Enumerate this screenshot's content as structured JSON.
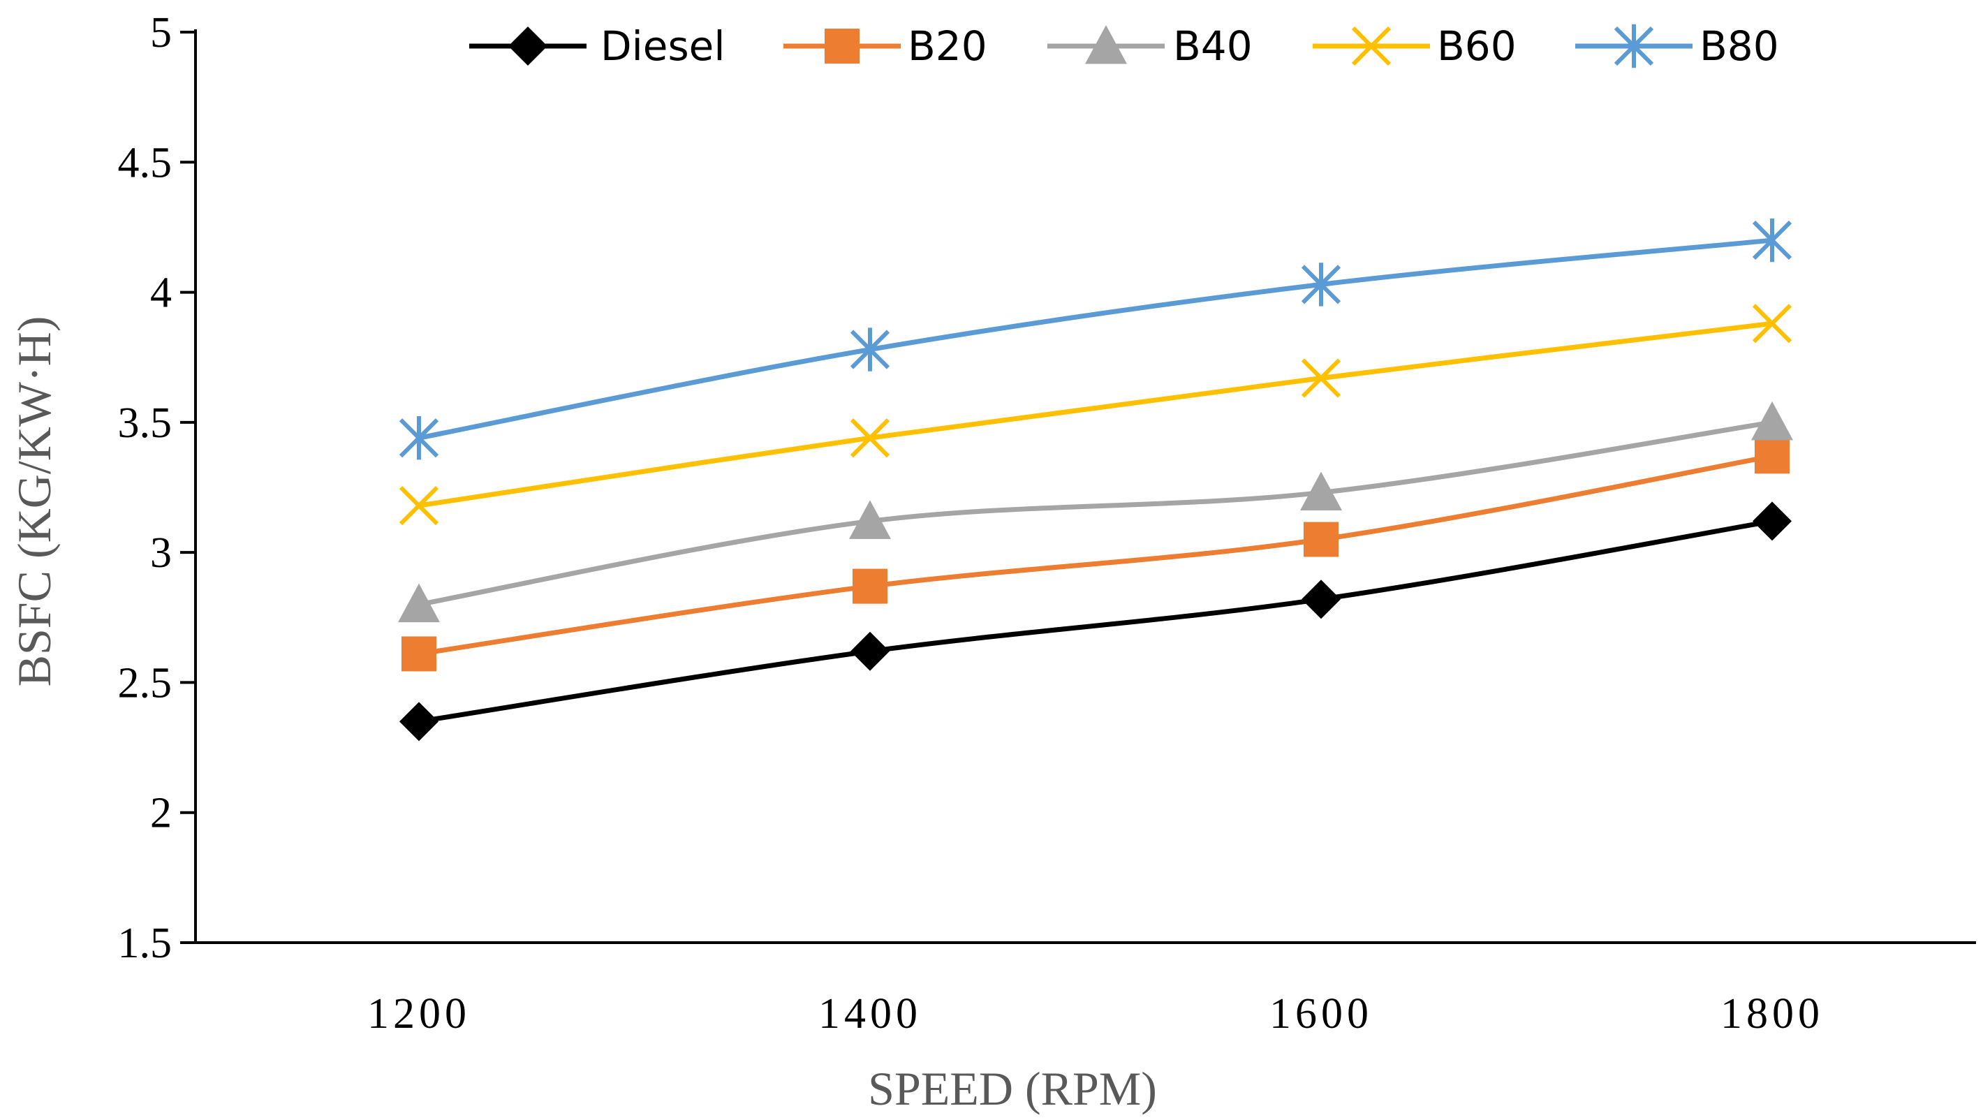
{
  "chart_data": {
    "type": "line",
    "title": "",
    "xlabel": "SPEED (RPM)",
    "ylabel": "BSFC (KG/KW·H)",
    "x": [
      1200,
      1400,
      1600,
      1800
    ],
    "x_tick_labels": [
      "1200",
      "1400",
      "1600",
      "1800"
    ],
    "ylim": [
      1.5,
      5
    ],
    "y_ticks": [
      1.5,
      2,
      2.5,
      3,
      3.5,
      4,
      4.5,
      5
    ],
    "y_tick_labels": [
      "1.5",
      "2",
      "2.5",
      "3",
      "3.5",
      "4",
      "4.5",
      "5"
    ],
    "grid": false,
    "legend_position": "top",
    "smooth": true,
    "series": [
      {
        "name": "Diesel",
        "values": [
          2.35,
          2.62,
          2.82,
          3.12
        ],
        "color": "#000000",
        "marker": "diamond"
      },
      {
        "name": "B20",
        "values": [
          2.61,
          2.87,
          3.05,
          3.37
        ],
        "color": "#ED7D31",
        "marker": "square"
      },
      {
        "name": "B40",
        "values": [
          2.8,
          3.12,
          3.23,
          3.5
        ],
        "color": "#A5A5A5",
        "marker": "triangle"
      },
      {
        "name": "B60",
        "values": [
          3.18,
          3.44,
          3.67,
          3.88
        ],
        "color": "#FFC000",
        "marker": "x"
      },
      {
        "name": "B80",
        "values": [
          3.44,
          3.78,
          4.03,
          4.2
        ],
        "color": "#5B9BD5",
        "marker": "asterisk"
      }
    ]
  }
}
